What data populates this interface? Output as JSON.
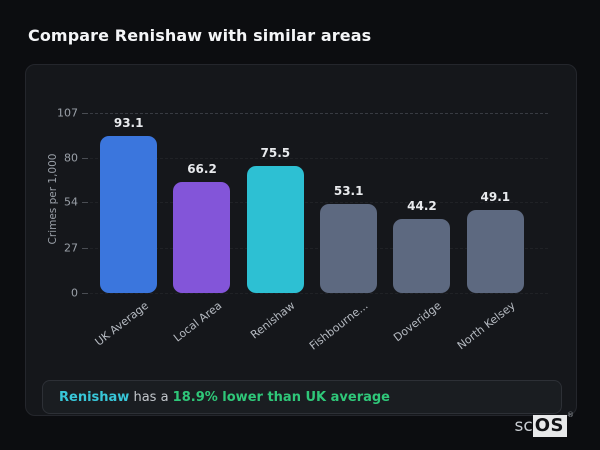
{
  "page": {
    "title": "Compare Renishaw with similar areas"
  },
  "chart_data": {
    "type": "bar",
    "title": "Compare Renishaw with similar areas",
    "categories": [
      "UK Average",
      "Local Area",
      "Renishaw",
      "Fishbourne...",
      "Doveridge",
      "North Kelsey"
    ],
    "values": [
      93.1,
      66.2,
      75.5,
      53.1,
      44.2,
      49.1
    ],
    "bar_colors": [
      "#3b76dd",
      "#8355d9",
      "#2dc0d3",
      "#5d6980",
      "#5d6980",
      "#5d6980"
    ],
    "xlabel": "",
    "ylabel": "Crimes per 1,000",
    "yticks": [
      0,
      27,
      54,
      80,
      107
    ],
    "ylim": [
      0,
      107
    ],
    "grid": "horizontal-dashed",
    "legend": "none",
    "value_labels_shown": true,
    "x_tick_rotation_deg": -38
  },
  "note": {
    "area": "Renishaw",
    "middle": " has a ",
    "highlight": "18.9% lower than UK average",
    "teal_color": "#38c6d8",
    "green_color": "#2fc779"
  },
  "logo": {
    "prefix": "sc",
    "suffix": "OS",
    "registered": "®"
  }
}
